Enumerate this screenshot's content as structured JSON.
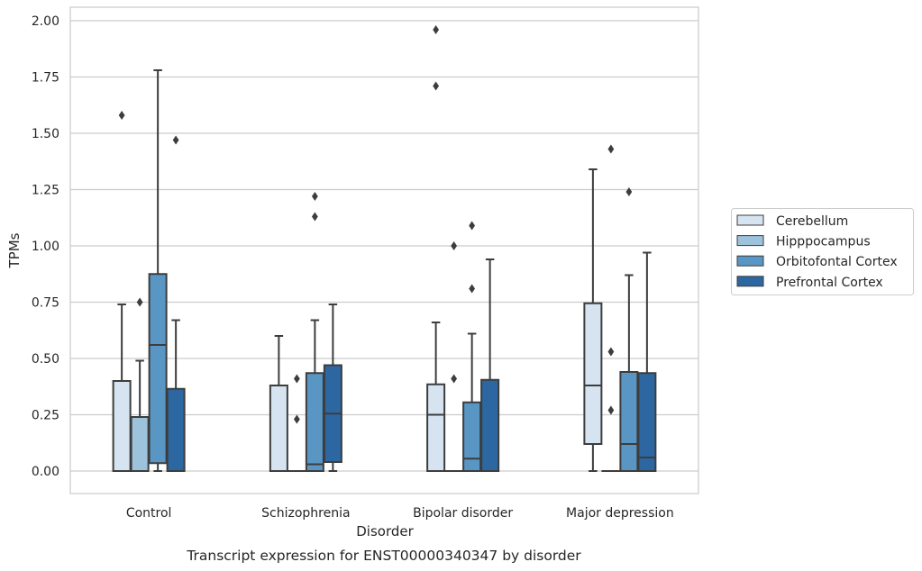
{
  "chart_data": {
    "type": "box",
    "caption": "Transcript expression for ENST00000340347 by disorder",
    "xlabel": "Disorder",
    "ylabel": "TPMs",
    "ylim": [
      -0.1,
      2.06
    ],
    "yticks": [
      "0.00",
      "0.25",
      "0.50",
      "0.75",
      "1.00",
      "1.25",
      "1.50",
      "1.75",
      "2.00"
    ],
    "grid": "horizontal",
    "legend_position": "right",
    "categories": [
      "Control",
      "Schizophrenia",
      "Bipolar disorder",
      "Major depression"
    ],
    "series": [
      {
        "name": "Cerebellum",
        "color": "#d6e4f1",
        "boxes": [
          {
            "q1": 0.0,
            "median": 0.0,
            "q3": 0.4,
            "whisker_low": 0.0,
            "whisker_high": 0.74,
            "outliers": [
              1.58
            ]
          },
          {
            "q1": 0.0,
            "median": 0.0,
            "q3": 0.38,
            "whisker_low": 0.0,
            "whisker_high": 0.6,
            "outliers": []
          },
          {
            "q1": 0.0,
            "median": 0.25,
            "q3": 0.385,
            "whisker_low": 0.0,
            "whisker_high": 0.66,
            "outliers": [
              1.71,
              1.96
            ]
          },
          {
            "q1": 0.12,
            "median": 0.38,
            "q3": 0.745,
            "whisker_low": 0.0,
            "whisker_high": 1.34,
            "outliers": []
          }
        ]
      },
      {
        "name": "Hipppocampus",
        "color": "#9cc2dc",
        "boxes": [
          {
            "q1": 0.0,
            "median": 0.0,
            "q3": 0.24,
            "whisker_low": 0.0,
            "whisker_high": 0.49,
            "outliers": [
              0.75
            ]
          },
          {
            "q1": 0.0,
            "median": 0.0,
            "q3": 0.0,
            "whisker_low": 0.0,
            "whisker_high": 0.0,
            "outliers": [
              0.23,
              0.41
            ]
          },
          {
            "q1": 0.0,
            "median": 0.0,
            "q3": 0.0,
            "whisker_low": 0.0,
            "whisker_high": 0.0,
            "outliers": [
              0.41,
              1.0
            ]
          },
          {
            "q1": 0.0,
            "median": 0.0,
            "q3": 0.0,
            "whisker_low": 0.0,
            "whisker_high": 0.0,
            "outliers": [
              0.27,
              0.53,
              1.43
            ]
          }
        ]
      },
      {
        "name": "Orbitofontal Cortex",
        "color": "#5a96c4",
        "boxes": [
          {
            "q1": 0.035,
            "median": 0.56,
            "q3": 0.875,
            "whisker_low": 0.0,
            "whisker_high": 1.78,
            "outliers": []
          },
          {
            "q1": 0.0,
            "median": 0.03,
            "q3": 0.435,
            "whisker_low": 0.0,
            "whisker_high": 0.67,
            "outliers": [
              1.13,
              1.22
            ]
          },
          {
            "q1": 0.0,
            "median": 0.055,
            "q3": 0.305,
            "whisker_low": 0.0,
            "whisker_high": 0.61,
            "outliers": [
              0.81,
              1.09
            ]
          },
          {
            "q1": 0.0,
            "median": 0.12,
            "q3": 0.44,
            "whisker_low": 0.0,
            "whisker_high": 0.87,
            "outliers": [
              1.24
            ]
          }
        ]
      },
      {
        "name": "Prefrontal Cortex",
        "color": "#2d67a2",
        "boxes": [
          {
            "q1": 0.0,
            "median": 0.0,
            "q3": 0.365,
            "whisker_low": 0.0,
            "whisker_high": 0.67,
            "outliers": [
              1.47
            ]
          },
          {
            "q1": 0.04,
            "median": 0.255,
            "q3": 0.47,
            "whisker_low": 0.0,
            "whisker_high": 0.74,
            "outliers": []
          },
          {
            "q1": 0.0,
            "median": 0.0,
            "q3": 0.405,
            "whisker_low": 0.0,
            "whisker_high": 0.94,
            "outliers": []
          },
          {
            "q1": 0.0,
            "median": 0.06,
            "q3": 0.435,
            "whisker_low": 0.0,
            "whisker_high": 0.97,
            "outliers": []
          }
        ]
      }
    ]
  }
}
